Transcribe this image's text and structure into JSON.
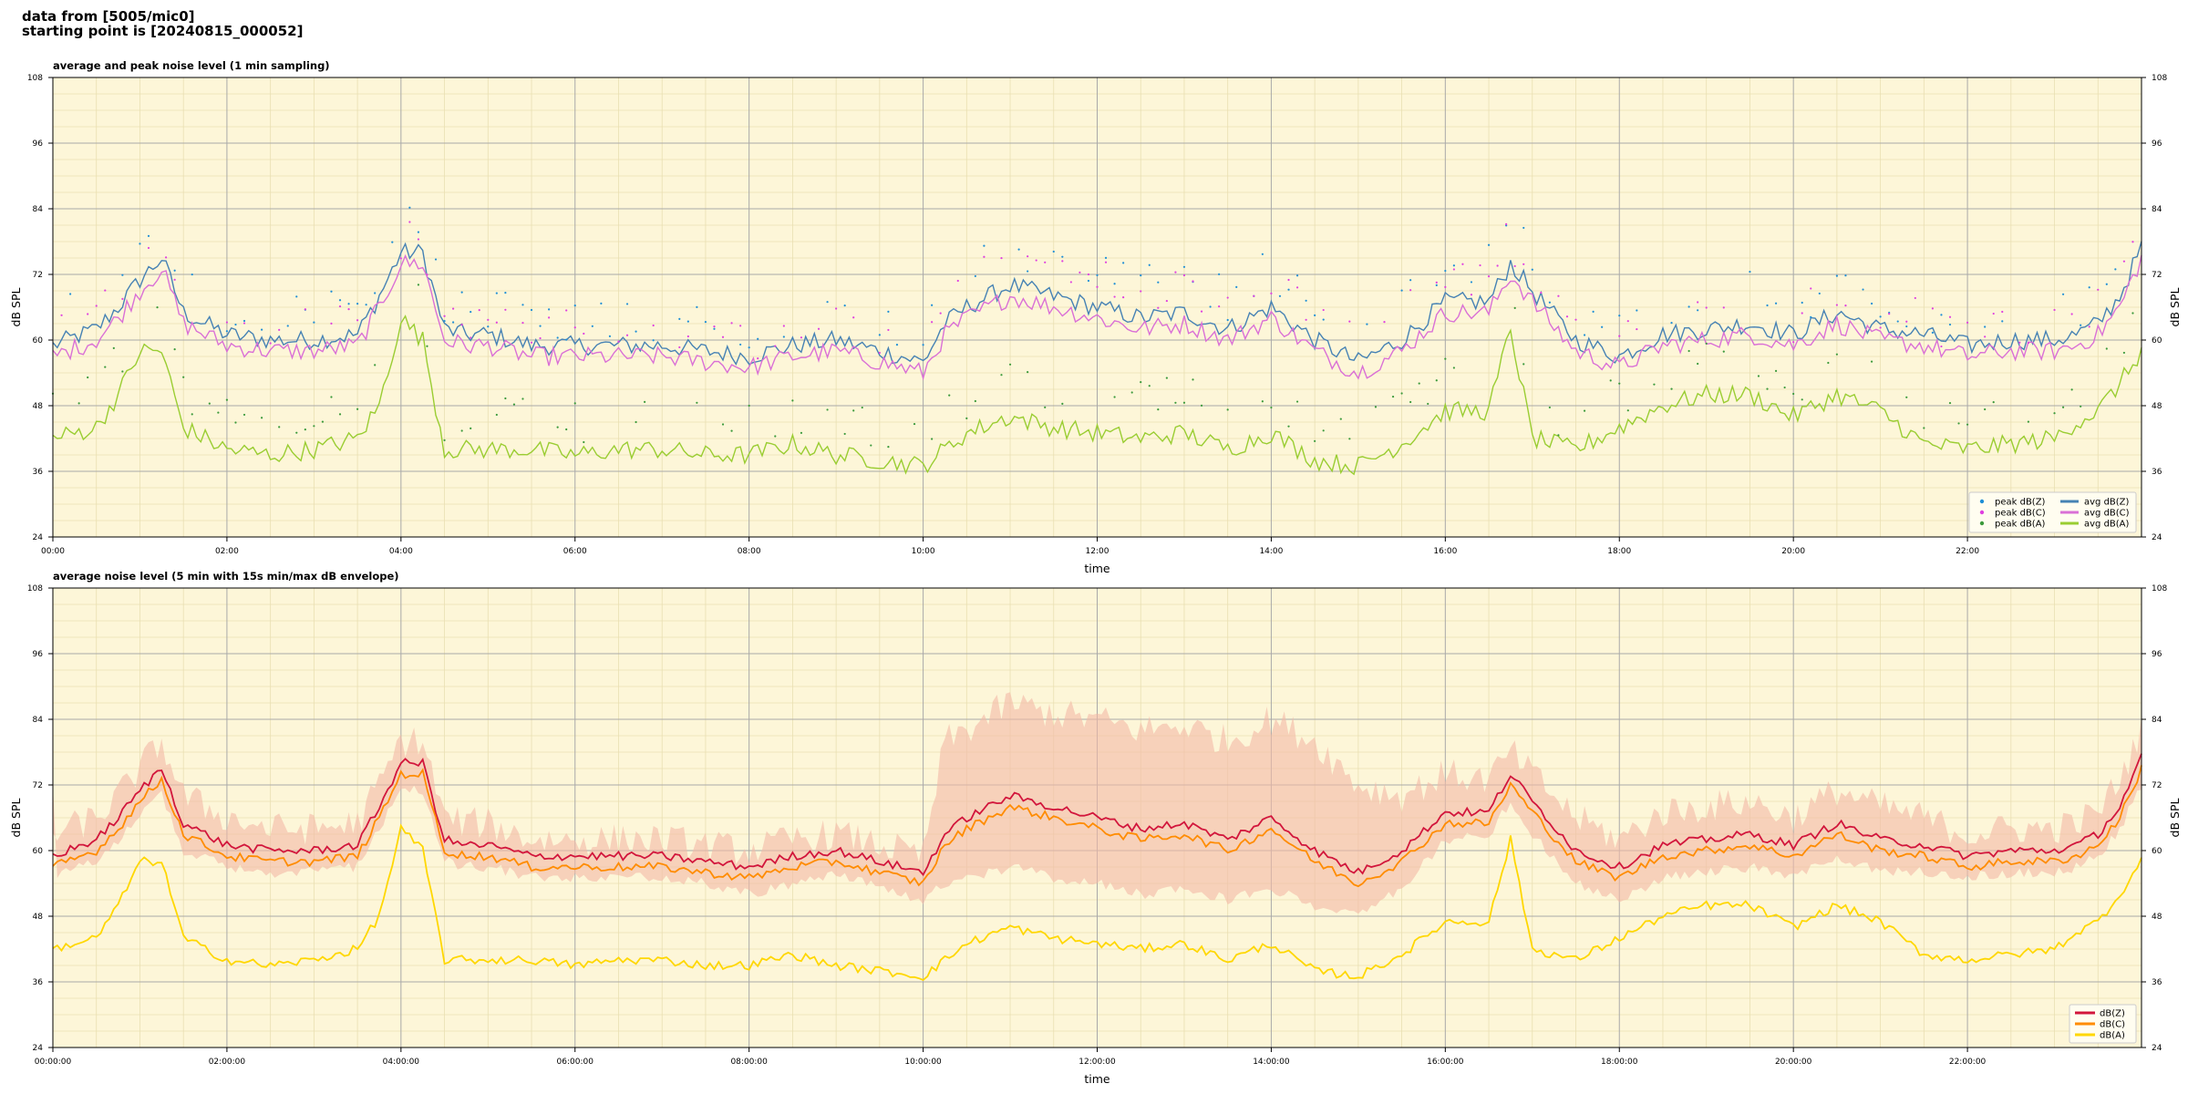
{
  "header": {
    "line1": "data from [5005/mic0]",
    "line2": "starting point is [20240815_000052]"
  },
  "colors": {
    "plot_bg": "#fdf6d8",
    "grid_major": "#a9a9a9",
    "grid_minor": "#e9dfb2",
    "peakZ": "#1f8fd6",
    "peakC": "#e040e0",
    "peakA": "#3c9a3c",
    "avgZ": "#4682b4",
    "avgC": "#da70d6",
    "avgA": "#9acd32",
    "dbZ": "#d2163c",
    "dbC": "#ff8c00",
    "dbA": "#ffd700",
    "envelope": "#f4b9a6"
  },
  "chart_data": [
    {
      "type": "line+scatter",
      "title": "average and peak noise level (1 min sampling)",
      "xlabel": "time",
      "ylabel": "dB SPL",
      "ylim": [
        24,
        108
      ],
      "yticks": [
        "24",
        "36",
        "48",
        "60",
        "72",
        "84",
        "96",
        "108"
      ],
      "xlim_hours": [
        0,
        24
      ],
      "xticks": [
        "00:00",
        "02:00",
        "04:00",
        "06:00",
        "08:00",
        "10:00",
        "12:00",
        "14:00",
        "16:00",
        "18:00",
        "20:00",
        "22:00"
      ],
      "grid": true,
      "legend_position": "bottom-right",
      "legend": [
        "peak dB(Z)",
        "peak dB(C)",
        "peak dB(A)",
        "avg dB(Z)",
        "avg dB(C)",
        "avg dB(A)"
      ],
      "x_hours": [
        0,
        0.5,
        0.75,
        1,
        1.25,
        1.5,
        2,
        2.5,
        3,
        3.5,
        3.75,
        4,
        4.25,
        4.5,
        4.75,
        5,
        5.5,
        6,
        6.5,
        7,
        7.5,
        8,
        8.5,
        9,
        9.5,
        10,
        10.25,
        10.5,
        11,
        11.5,
        12,
        12.5,
        13,
        13.5,
        14,
        14.5,
        15,
        15.5,
        16,
        16.5,
        16.75,
        17,
        17.5,
        18,
        18.5,
        19,
        19.5,
        20,
        20.5,
        21,
        21.5,
        22,
        22.5,
        23,
        23.25,
        23.5,
        23.75,
        24
      ],
      "series": [
        {
          "name": "avg dB(Z)",
          "values": [
            59,
            62,
            66,
            71,
            75,
            65,
            61,
            60,
            60,
            61,
            68,
            76,
            76,
            62,
            61,
            61,
            59,
            59,
            59,
            59,
            58,
            57,
            59,
            60,
            58,
            56,
            63,
            66,
            70,
            68,
            66,
            64,
            65,
            62,
            66,
            60,
            56,
            60,
            67,
            67,
            74,
            69,
            60,
            57,
            61,
            62,
            63,
            61,
            65,
            62,
            61,
            59,
            60,
            60,
            61,
            63,
            68,
            77
          ]
        },
        {
          "name": "avg dB(C)",
          "values": [
            57,
            60,
            64,
            69,
            73,
            63,
            59,
            58,
            58,
            59,
            66,
            74,
            74,
            60,
            59,
            59,
            57,
            57,
            57,
            57,
            56,
            55,
            57,
            58,
            56,
            54,
            61,
            64,
            68,
            66,
            64,
            62,
            63,
            60,
            64,
            58,
            54,
            58,
            65,
            65,
            72,
            67,
            58,
            55,
            59,
            60,
            61,
            59,
            63,
            60,
            59,
            57,
            58,
            58,
            59,
            61,
            66,
            75
          ]
        },
        {
          "name": "avg dB(A)",
          "values": [
            42,
            44,
            50,
            58,
            58,
            44,
            40,
            39,
            40,
            42,
            48,
            64,
            60,
            40,
            40,
            40,
            40,
            39,
            40,
            40,
            39,
            39,
            41,
            39,
            38,
            37,
            40,
            43,
            46,
            44,
            43,
            42,
            43,
            40,
            43,
            38,
            37,
            41,
            47,
            47,
            62,
            42,
            40,
            44,
            48,
            50,
            50,
            46,
            50,
            47,
            41,
            40,
            41,
            42,
            45,
            47,
            52,
            58
          ]
        },
        {
          "name": "peak dB(Z)",
          "values": [
            63,
            66,
            70,
            75,
            80,
            68,
            64,
            63,
            63,
            64,
            71,
            79,
            79,
            65,
            64,
            64,
            62,
            62,
            62,
            62,
            61,
            60,
            62,
            63,
            61,
            59,
            67,
            71,
            76,
            73,
            72,
            69,
            70,
            66,
            72,
            64,
            59,
            64,
            72,
            72,
            79,
            73,
            63,
            60,
            65,
            66,
            67,
            64,
            69,
            66,
            64,
            62,
            63,
            63,
            64,
            66,
            72,
            81
          ]
        },
        {
          "name": "peak dB(C)",
          "values": [
            61,
            64,
            68,
            73,
            78,
            66,
            62,
            61,
            61,
            62,
            69,
            77,
            77,
            63,
            62,
            62,
            60,
            60,
            60,
            60,
            59,
            58,
            60,
            61,
            59,
            57,
            65,
            69,
            74,
            71,
            70,
            67,
            68,
            64,
            70,
            62,
            57,
            62,
            70,
            70,
            77,
            71,
            61,
            58,
            63,
            64,
            65,
            62,
            67,
            64,
            62,
            60,
            61,
            61,
            62,
            64,
            70,
            79
          ]
        },
        {
          "name": "peak dB(A)",
          "values": [
            47,
            49,
            55,
            62,
            62,
            48,
            44,
            43,
            44,
            46,
            53,
            67,
            64,
            44,
            44,
            44,
            44,
            43,
            44,
            44,
            43,
            43,
            45,
            43,
            42,
            41,
            44,
            47,
            51,
            49,
            48,
            47,
            48,
            44,
            48,
            42,
            41,
            45,
            51,
            51,
            66,
            46,
            44,
            48,
            52,
            54,
            54,
            50,
            54,
            51,
            45,
            44,
            45,
            46,
            49,
            51,
            56,
            62
          ]
        }
      ]
    },
    {
      "type": "line",
      "title": "average noise level (5 min with 15s min/max dB envelope)",
      "xlabel": "time",
      "ylabel": "dB SPL",
      "ylim": [
        24,
        108
      ],
      "yticks": [
        "24",
        "36",
        "48",
        "60",
        "72",
        "84",
        "96",
        "108"
      ],
      "xlim_hours": [
        0,
        24
      ],
      "xticks": [
        "00:00:00",
        "02:00:00",
        "04:00:00",
        "06:00:00",
        "08:00:00",
        "10:00:00",
        "12:00:00",
        "14:00:00",
        "16:00:00",
        "18:00:00",
        "20:00:00",
        "22:00:00"
      ],
      "grid": true,
      "legend_position": "bottom-right",
      "legend": [
        "dB(Z)",
        "dB(C)",
        "dB(A)"
      ],
      "x_hours": [
        0,
        0.5,
        0.75,
        1,
        1.25,
        1.5,
        2,
        2.5,
        3,
        3.5,
        3.75,
        4,
        4.25,
        4.5,
        4.75,
        5,
        5.5,
        6,
        6.5,
        7,
        7.5,
        8,
        8.5,
        9,
        9.5,
        10,
        10.25,
        10.5,
        11,
        11.5,
        12,
        12.5,
        13,
        13.5,
        14,
        14.5,
        15,
        15.5,
        16,
        16.5,
        16.75,
        17,
        17.5,
        18,
        18.5,
        19,
        19.5,
        20,
        20.5,
        21,
        21.5,
        22,
        22.5,
        23,
        23.25,
        23.5,
        23.75,
        24
      ],
      "series": [
        {
          "name": "dB(Z)",
          "values": [
            59,
            62,
            66,
            71,
            75,
            65,
            61,
            60,
            60,
            61,
            68,
            76,
            76,
            62,
            61,
            61,
            59,
            59,
            59,
            59,
            58,
            57,
            59,
            60,
            58,
            56,
            63,
            66,
            70,
            68,
            66,
            64,
            65,
            62,
            66,
            60,
            56,
            60,
            67,
            67,
            74,
            69,
            60,
            57,
            61,
            62,
            63,
            61,
            65,
            62,
            61,
            59,
            60,
            60,
            61,
            63,
            68,
            77
          ]
        },
        {
          "name": "dB(C)",
          "values": [
            57,
            60,
            64,
            69,
            73,
            63,
            59,
            58,
            58,
            59,
            66,
            74,
            74,
            60,
            59,
            59,
            57,
            57,
            57,
            57,
            56,
            55,
            57,
            58,
            56,
            54,
            61,
            64,
            68,
            66,
            64,
            62,
            63,
            60,
            64,
            58,
            54,
            58,
            65,
            65,
            72,
            67,
            58,
            55,
            59,
            60,
            61,
            59,
            63,
            60,
            59,
            57,
            58,
            58,
            59,
            61,
            66,
            75
          ]
        },
        {
          "name": "dB(A)",
          "values": [
            42,
            44,
            50,
            58,
            58,
            44,
            40,
            39,
            40,
            42,
            48,
            64,
            60,
            40,
            40,
            40,
            40,
            39,
            40,
            40,
            39,
            39,
            41,
            39,
            38,
            37,
            40,
            43,
            46,
            44,
            43,
            42,
            43,
            40,
            43,
            38,
            37,
            41,
            47,
            47,
            62,
            42,
            40,
            44,
            48,
            50,
            50,
            46,
            50,
            47,
            41,
            40,
            41,
            42,
            45,
            47,
            52,
            58
          ]
        }
      ],
      "envelope_min": [
        55,
        58,
        62,
        67,
        70,
        60,
        57,
        56,
        56,
        57,
        64,
        72,
        71,
        58,
        57,
        57,
        55,
        55,
        55,
        55,
        54,
        52,
        54,
        56,
        53,
        51,
        54,
        55,
        57,
        55,
        54,
        52,
        53,
        51,
        53,
        50,
        48,
        53,
        62,
        63,
        69,
        63,
        54,
        51,
        55,
        56,
        57,
        55,
        59,
        56,
        56,
        55,
        56,
        56,
        57,
        59,
        64,
        72
      ],
      "envelope_max": [
        63,
        66,
        70,
        75,
        80,
        70,
        66,
        64,
        64,
        65,
        72,
        80,
        80,
        66,
        65,
        65,
        62,
        62,
        62,
        62,
        61,
        60,
        62,
        63,
        61,
        59,
        80,
        82,
        87,
        85,
        84,
        82,
        83,
        80,
        84,
        80,
        72,
        70,
        74,
        73,
        78,
        74,
        66,
        62,
        67,
        68,
        69,
        66,
        71,
        68,
        66,
        63,
        64,
        64,
        65,
        67,
        73,
        82
      ]
    }
  ]
}
